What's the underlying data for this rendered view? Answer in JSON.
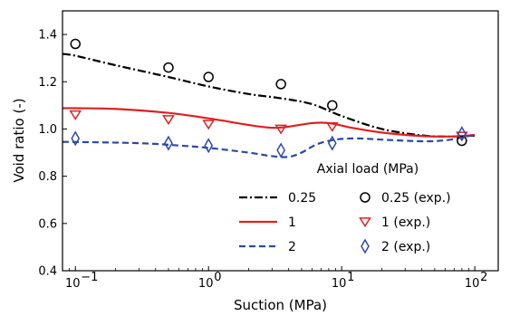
{
  "chart_data": {
    "type": "line",
    "xlabel": "Suction (MPa)",
    "ylabel": "Void ratio (-)",
    "xscale": "log",
    "xlim": [
      0.08,
      150
    ],
    "ylim": [
      0.4,
      1.5
    ],
    "grid": false,
    "x_ticks": [
      {
        "value": 0.1,
        "label": "10",
        "exp": "−1"
      },
      {
        "value": 1,
        "label": "10",
        "exp": "0"
      },
      {
        "value": 10,
        "label": "10",
        "exp": "1"
      },
      {
        "value": 100,
        "label": "10",
        "exp": "2"
      }
    ],
    "y_ticks": [
      {
        "value": 0.4,
        "label": "0.4"
      },
      {
        "value": 0.6,
        "label": "0.6"
      },
      {
        "value": 0.8,
        "label": "0.8"
      },
      {
        "value": 1.0,
        "label": "1.0"
      },
      {
        "value": 1.2,
        "label": "1.2"
      },
      {
        "value": 1.4,
        "label": "1.4"
      }
    ],
    "legend": {
      "title": "Axial load (MPa)",
      "position": "lower-right",
      "entries": [
        {
          "series": 0,
          "label": "0.25"
        },
        {
          "series": 3,
          "label": "0.25 (exp.)"
        },
        {
          "series": 1,
          "label": "1"
        },
        {
          "series": 4,
          "label": "1 (exp.)"
        },
        {
          "series": 2,
          "label": "2"
        },
        {
          "series": 5,
          "label": "2 (exp.)"
        }
      ]
    },
    "series": [
      {
        "name": "0.25",
        "kind": "line",
        "color": "#000000",
        "dash": "dashdot",
        "points": [
          [
            0.08,
            1.318
          ],
          [
            0.1,
            1.31
          ],
          [
            0.2,
            1.27
          ],
          [
            0.5,
            1.22
          ],
          [
            1,
            1.18
          ],
          [
            2,
            1.148
          ],
          [
            3.5,
            1.13
          ],
          [
            6,
            1.105
          ],
          [
            10,
            1.055
          ],
          [
            20,
            1.0
          ],
          [
            40,
            0.973
          ],
          [
            60,
            0.968
          ],
          [
            80,
            0.97
          ],
          [
            100,
            0.972
          ]
        ]
      },
      {
        "name": "1",
        "kind": "line",
        "color": "#e02020",
        "dash": "solid",
        "points": [
          [
            0.08,
            1.088
          ],
          [
            0.1,
            1.088
          ],
          [
            0.2,
            1.085
          ],
          [
            0.5,
            1.068
          ],
          [
            1,
            1.045
          ],
          [
            2,
            1.017
          ],
          [
            3,
            1.005
          ],
          [
            4,
            1.01
          ],
          [
            6,
            1.025
          ],
          [
            8,
            1.025
          ],
          [
            12,
            1.005
          ],
          [
            20,
            0.985
          ],
          [
            40,
            0.97
          ],
          [
            60,
            0.968
          ],
          [
            80,
            0.97
          ],
          [
            100,
            0.975
          ]
        ]
      },
      {
        "name": "2",
        "kind": "line",
        "color": "#2a4aa8",
        "dash": "dashed",
        "points": [
          [
            0.08,
            0.945
          ],
          [
            0.1,
            0.945
          ],
          [
            0.3,
            0.94
          ],
          [
            0.6,
            0.93
          ],
          [
            1,
            0.92
          ],
          [
            2,
            0.9
          ],
          [
            3,
            0.885
          ],
          [
            4,
            0.882
          ],
          [
            5,
            0.9
          ],
          [
            6.5,
            0.935
          ],
          [
            9,
            0.955
          ],
          [
            13,
            0.96
          ],
          [
            20,
            0.955
          ],
          [
            40,
            0.948
          ],
          [
            60,
            0.952
          ],
          [
            80,
            0.965
          ],
          [
            100,
            0.975
          ]
        ]
      },
      {
        "name": "0.25 (exp.)",
        "kind": "marker",
        "marker": "circle",
        "color": "#000000",
        "points": [
          [
            0.1,
            1.36
          ],
          [
            0.5,
            1.26
          ],
          [
            1,
            1.22
          ],
          [
            3.5,
            1.19
          ],
          [
            8.5,
            1.1
          ],
          [
            80,
            0.95
          ]
        ]
      },
      {
        "name": "1 (exp.)",
        "kind": "marker",
        "marker": "triangle-down",
        "color": "#e02020",
        "points": [
          [
            0.1,
            1.06
          ],
          [
            0.5,
            1.04
          ],
          [
            1,
            1.02
          ],
          [
            3.5,
            1.0
          ],
          [
            8.5,
            1.01
          ],
          [
            80,
            0.97
          ]
        ]
      },
      {
        "name": "2 (exp.)",
        "kind": "marker",
        "marker": "diamond",
        "color": "#2a4aa8",
        "points": [
          [
            0.1,
            0.96
          ],
          [
            0.5,
            0.94
          ],
          [
            1,
            0.93
          ],
          [
            3.5,
            0.91
          ],
          [
            8.5,
            0.94
          ],
          [
            80,
            0.98
          ]
        ]
      }
    ]
  }
}
